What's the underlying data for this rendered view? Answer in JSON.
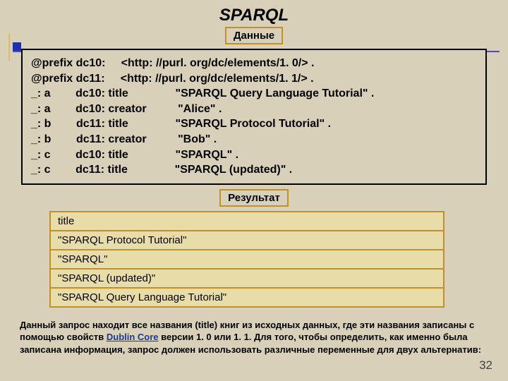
{
  "title": "SPARQL",
  "labels": {
    "data": "Данные",
    "result": "Результат"
  },
  "dataLines": [
    "@prefix dc10:     <http: //purl. org/dc/elements/1. 0/> .",
    "@prefix dc11:     <http: //purl. org/dc/elements/1. 1/> .",
    "_: a        dc10: title               \"SPARQL Query Language Tutorial\" .",
    "_: a        dc10: creator          \"Alice\" .",
    "_: b        dc11: title               \"SPARQL Protocol Tutorial\" .",
    "_: b        dc11: creator          \"Bob\" .",
    "_: c        dc10: title               \"SPARQL\" .",
    "_: c        dc11: title               \"SPARQL (updated)\" ."
  ],
  "resultTable": {
    "header": "title",
    "rows": [
      "\"SPARQL Protocol Tutorial\"",
      "\"SPARQL\"",
      "\"SPARQL (updated)\"",
      "\"SPARQL Query Language Tutorial\""
    ]
  },
  "footer": {
    "pre": "Данный запрос находит все названия (title) книг из исходных данных, где эти названия записаны с помощью свойств ",
    "link": "Dublin Core",
    "post": " версии 1. 0 или 1. 1. Для того, чтобы определить, как именно была записана информация, запрос должен использовать различные переменные для двух альтернатив:"
  },
  "pageNumber": "32",
  "colors": {
    "bg": "#d8d0b8",
    "border_orange": "#c09030",
    "table_fill": "#e8dca8",
    "accent_blue": "#2030b0"
  }
}
